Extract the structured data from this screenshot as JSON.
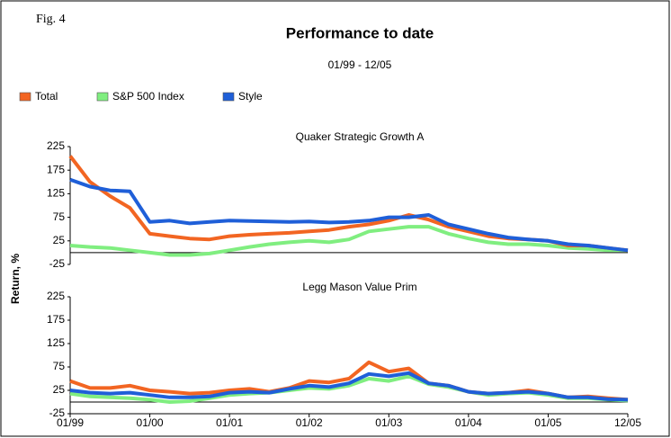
{
  "header": {
    "figure_label": "Fig. 4",
    "title": "Performance to date",
    "subtitle": "01/99 - 12/05",
    "y_label": "Return, %"
  },
  "chart_data": [
    {
      "type": "line",
      "title": "Quaker Strategic Growth A",
      "series": [
        {
          "name": "Total",
          "color": "#f26522",
          "values": [
            205,
            150,
            120,
            95,
            40,
            35,
            30,
            28,
            35,
            38,
            40,
            42,
            45,
            48,
            55,
            60,
            68,
            80,
            70,
            55,
            45,
            35,
            30,
            28,
            25,
            15,
            15,
            10,
            5
          ]
        },
        {
          "name": "S&P 500 Index",
          "color": "#80ee80",
          "values": [
            15,
            12,
            10,
            5,
            0,
            -5,
            -5,
            -2,
            5,
            12,
            18,
            22,
            25,
            22,
            28,
            45,
            50,
            55,
            55,
            40,
            30,
            22,
            18,
            18,
            15,
            10,
            8,
            5,
            5
          ]
        },
        {
          "name": "Style",
          "color": "#1f5fd8",
          "values": [
            155,
            140,
            132,
            130,
            65,
            68,
            62,
            65,
            68,
            67,
            66,
            65,
            66,
            64,
            65,
            68,
            75,
            75,
            80,
            60,
            50,
            40,
            32,
            28,
            25,
            18,
            15,
            10,
            5
          ]
        }
      ],
      "ylim": [
        -25,
        225
      ],
      "yticks": [
        -25,
        25,
        75,
        125,
        175,
        225
      ]
    },
    {
      "type": "line",
      "title": "Legg Mason Value Prim",
      "categories": [
        "01/99",
        null,
        null,
        null,
        "01/00",
        null,
        null,
        null,
        "01/01",
        null,
        null,
        null,
        "01/02",
        null,
        null,
        null,
        "01/03",
        null,
        null,
        null,
        "01/04",
        null,
        null,
        null,
        "01/05",
        null,
        null,
        null,
        "12/05"
      ],
      "series": [
        {
          "name": "Total",
          "color": "#f26522",
          "values": [
            45,
            30,
            30,
            35,
            25,
            22,
            18,
            20,
            25,
            28,
            22,
            30,
            45,
            42,
            50,
            85,
            65,
            72,
            40,
            35,
            22,
            18,
            20,
            25,
            18,
            10,
            12,
            8,
            5
          ]
        },
        {
          "name": "S&P 500 Index",
          "color": "#80ee80",
          "values": [
            18,
            12,
            10,
            8,
            5,
            0,
            2,
            8,
            15,
            18,
            20,
            25,
            30,
            28,
            35,
            50,
            45,
            55,
            38,
            32,
            22,
            15,
            18,
            20,
            15,
            8,
            8,
            5,
            3
          ]
        },
        {
          "name": "Style",
          "color": "#1f5fd8",
          "values": [
            25,
            20,
            18,
            20,
            15,
            10,
            10,
            12,
            20,
            22,
            20,
            28,
            35,
            32,
            40,
            60,
            55,
            62,
            40,
            35,
            22,
            18,
            20,
            22,
            18,
            10,
            10,
            6,
            5
          ]
        }
      ],
      "ylim": [
        -25,
        225
      ],
      "yticks": [
        -25,
        25,
        75,
        125,
        175,
        225
      ]
    }
  ]
}
